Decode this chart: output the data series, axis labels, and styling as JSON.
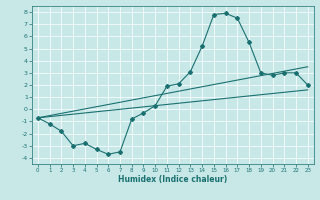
{
  "title": "",
  "xlabel": "Humidex (Indice chaleur)",
  "ylabel": "",
  "bg_color": "#c8e8e8",
  "line_color": "#1a7070",
  "xlim": [
    -0.5,
    23.5
  ],
  "ylim": [
    -4.5,
    8.5
  ],
  "xticks": [
    0,
    1,
    2,
    3,
    4,
    5,
    6,
    7,
    8,
    9,
    10,
    11,
    12,
    13,
    14,
    15,
    16,
    17,
    18,
    19,
    20,
    21,
    22,
    23
  ],
  "yticks": [
    -4,
    -3,
    -2,
    -1,
    0,
    1,
    2,
    3,
    4,
    5,
    6,
    7,
    8
  ],
  "curve1_x": [
    0,
    1,
    2,
    3,
    4,
    5,
    6,
    7,
    8,
    9,
    10,
    11,
    12,
    13,
    14,
    15,
    16,
    17,
    18,
    19,
    20,
    21,
    22,
    23
  ],
  "curve1_y": [
    -0.7,
    -1.2,
    -1.8,
    -3.0,
    -2.8,
    -3.3,
    -3.7,
    -3.5,
    -0.8,
    -0.3,
    0.3,
    1.9,
    2.1,
    3.1,
    5.2,
    7.8,
    7.9,
    7.5,
    5.5,
    3.0,
    2.8,
    3.0,
    3.0,
    2.0
  ],
  "curve2_x": [
    0,
    23
  ],
  "curve2_y": [
    -0.7,
    3.5
  ],
  "curve3_x": [
    0,
    23
  ],
  "curve3_y": [
    -0.7,
    1.6
  ],
  "grid_color": "#ffffff",
  "tick_fontsize": 4.0,
  "xlabel_fontsize": 5.5
}
